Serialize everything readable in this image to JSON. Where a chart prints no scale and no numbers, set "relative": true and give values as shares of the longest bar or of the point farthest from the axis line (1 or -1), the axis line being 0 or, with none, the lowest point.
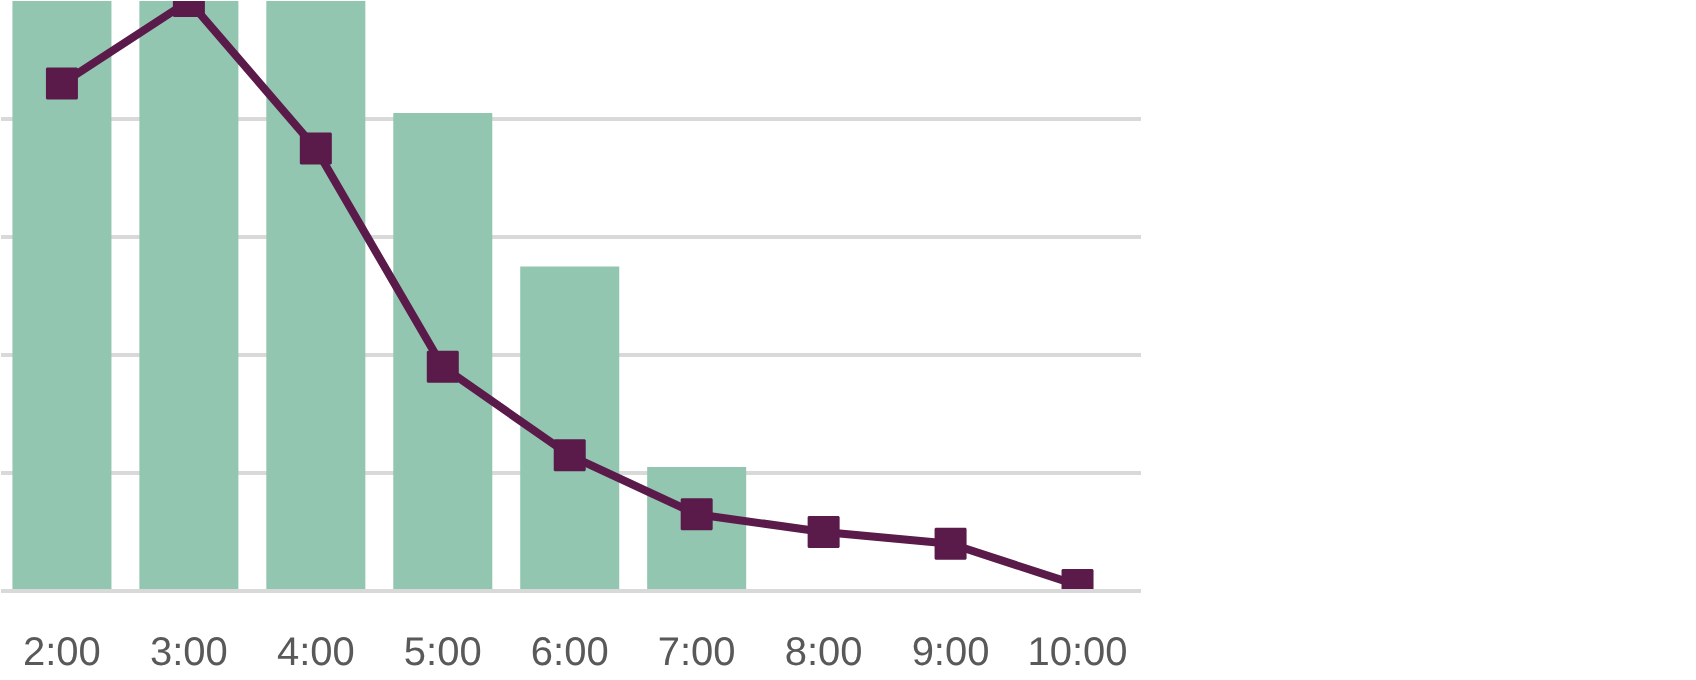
{
  "chart_data": {
    "type": "bar",
    "relative": true,
    "categories": [
      "2:00",
      "3:00",
      "4:00",
      "5:00",
      "6:00",
      "7:00",
      "8:00",
      "9:00",
      "10:00"
    ],
    "grid": "y",
    "series": [
      {
        "color": "#93c6b0",
        "values": [
          1.0,
          1.0,
          1.0,
          0.81,
          0.55,
          0.21,
          null,
          null,
          null
        ]
      },
      {
        "type": "line",
        "color": "#5a1a4a",
        "marker": "square",
        "values": [
          0.86,
          1.0,
          0.75,
          0.38,
          0.23,
          0.13,
          0.1,
          0.08,
          0.01
        ]
      }
    ]
  }
}
